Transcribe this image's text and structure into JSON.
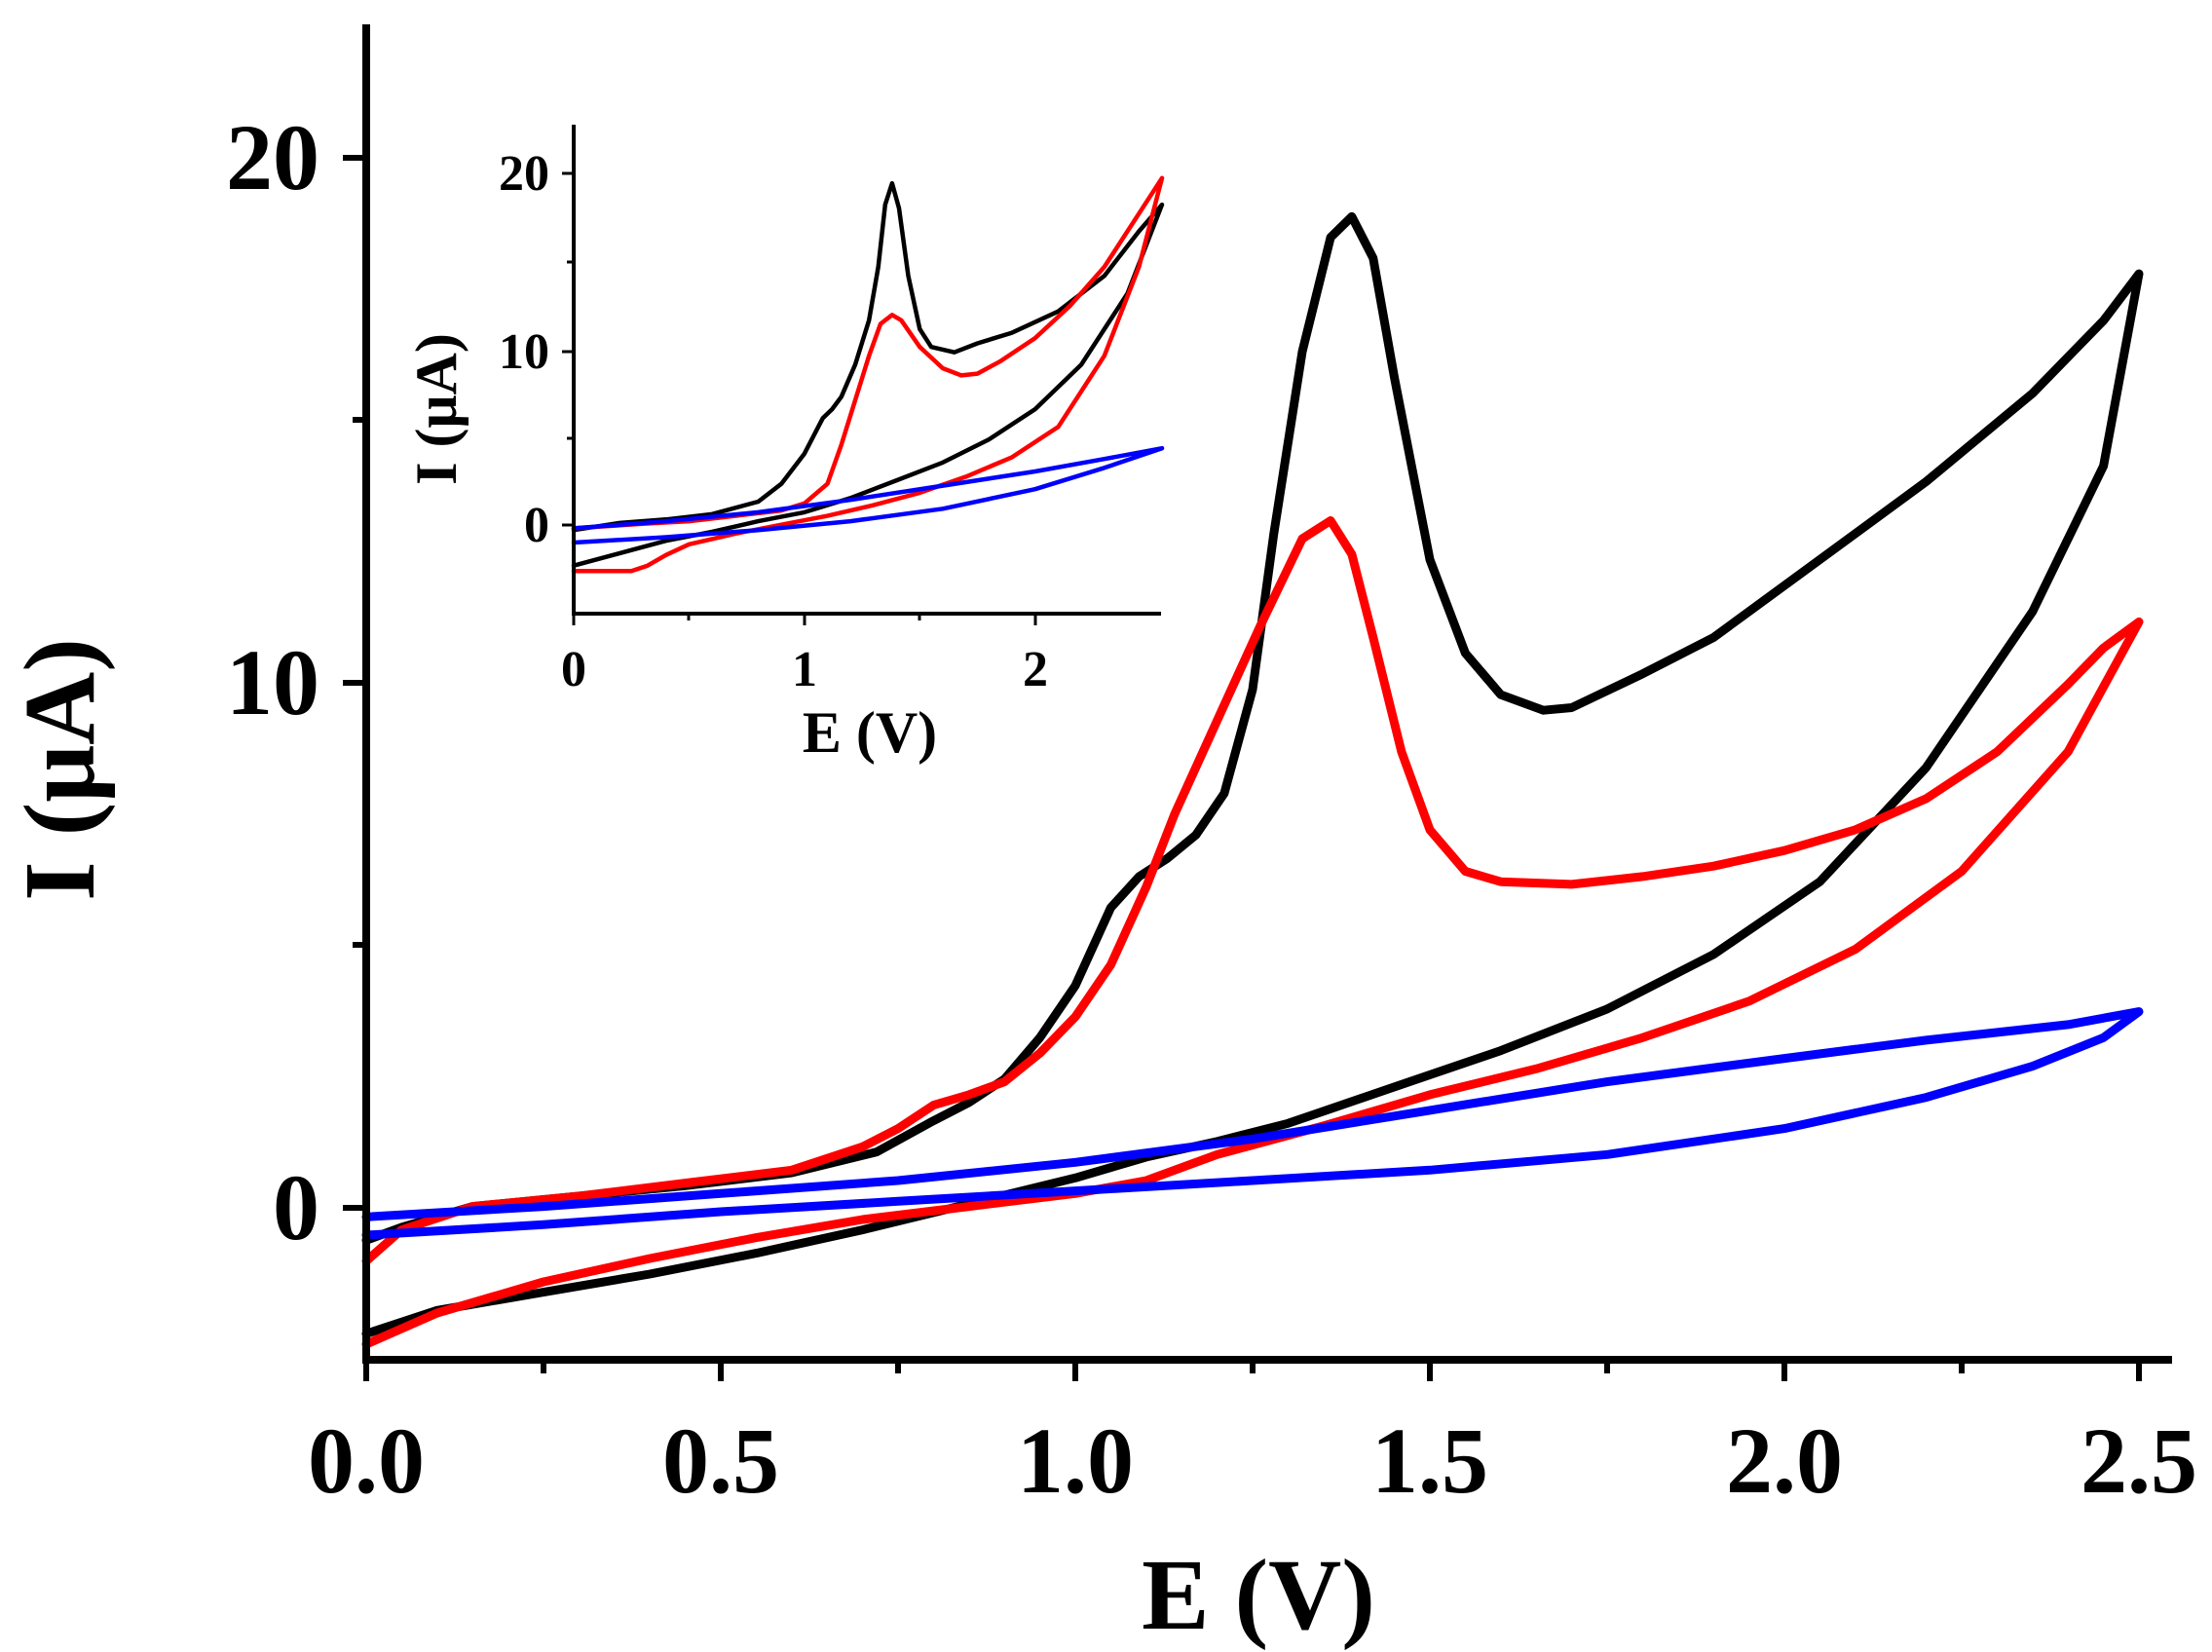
{
  "chart_data": [
    {
      "id": "main",
      "type": "line",
      "title": "",
      "xlabel": "E (V)",
      "ylabel": "I (μA)",
      "xlim": [
        0,
        2.5
      ],
      "ylim": [
        -2.9,
        22.8
      ],
      "xticks": [
        0,
        0.5,
        1.0,
        1.5,
        2.0,
        2.5
      ],
      "xtick_labels": [
        "0.0",
        "0.5",
        "1.0",
        "1.5",
        "2.0",
        "2.5"
      ],
      "yticks": [
        0,
        10,
        20
      ],
      "ytick_labels": [
        "0",
        "10",
        "20"
      ],
      "series": [
        {
          "name": "black",
          "color": "#000000",
          "points": [
            [
              0,
              -2.4
            ],
            [
              0.1,
              -1.95
            ],
            [
              0.25,
              -1.6
            ],
            [
              0.4,
              -1.25
            ],
            [
              0.55,
              -0.85
            ],
            [
              0.7,
              -0.4
            ],
            [
              0.85,
              0.1
            ],
            [
              1.0,
              0.6
            ],
            [
              1.1,
              1.0
            ],
            [
              1.2,
              1.3
            ],
            [
              1.3,
              1.65
            ],
            [
              1.45,
              2.35
            ],
            [
              1.6,
              3.05
            ],
            [
              1.75,
              3.85
            ],
            [
              1.9,
              4.9
            ],
            [
              2.05,
              6.3
            ],
            [
              2.2,
              8.5
            ],
            [
              2.35,
              11.5
            ],
            [
              2.45,
              14.3
            ],
            [
              2.5,
              18.0
            ],
            [
              2.45,
              17.1
            ],
            [
              2.35,
              15.7
            ],
            [
              2.2,
              14.0
            ],
            [
              2.05,
              12.5
            ],
            [
              1.9,
              11.0
            ],
            [
              1.8,
              10.3
            ],
            [
              1.7,
              9.65
            ],
            [
              1.66,
              9.6
            ],
            [
              1.6,
              9.9
            ],
            [
              1.55,
              10.7
            ],
            [
              1.5,
              12.5
            ],
            [
              1.45,
              16.0
            ],
            [
              1.42,
              18.3
            ],
            [
              1.39,
              19.1
            ],
            [
              1.36,
              18.7
            ],
            [
              1.32,
              16.5
            ],
            [
              1.28,
              13.0
            ],
            [
              1.25,
              10.0
            ],
            [
              1.21,
              8.0
            ],
            [
              1.17,
              7.2
            ],
            [
              1.13,
              6.75
            ],
            [
              1.09,
              6.4
            ],
            [
              1.05,
              5.8
            ],
            [
              1.0,
              4.3
            ],
            [
              0.95,
              3.3
            ],
            [
              0.9,
              2.5
            ],
            [
              0.85,
              2.05
            ],
            [
              0.8,
              1.7
            ],
            [
              0.72,
              1.1
            ],
            [
              0.6,
              0.7
            ],
            [
              0.45,
              0.45
            ],
            [
              0.3,
              0.25
            ],
            [
              0.15,
              0.05
            ],
            [
              0.05,
              -0.35
            ],
            [
              0,
              -0.6
            ]
          ]
        },
        {
          "name": "red",
          "color": "#ff0000",
          "points": [
            [
              0,
              -2.6
            ],
            [
              0.1,
              -2.0
            ],
            [
              0.25,
              -1.4
            ],
            [
              0.4,
              -0.95
            ],
            [
              0.55,
              -0.55
            ],
            [
              0.7,
              -0.2
            ],
            [
              0.85,
              0.05
            ],
            [
              1.0,
              0.3
            ],
            [
              1.1,
              0.55
            ],
            [
              1.2,
              1.05
            ],
            [
              1.35,
              1.6
            ],
            [
              1.5,
              2.2
            ],
            [
              1.65,
              2.7
            ],
            [
              1.8,
              3.3
            ],
            [
              1.95,
              4.0
            ],
            [
              2.1,
              5.0
            ],
            [
              2.25,
              6.5
            ],
            [
              2.4,
              8.8
            ],
            [
              2.5,
              11.3
            ],
            [
              2.45,
              10.8
            ],
            [
              2.4,
              10.1
            ],
            [
              2.3,
              8.8
            ],
            [
              2.2,
              7.9
            ],
            [
              2.1,
              7.3
            ],
            [
              2.0,
              6.9
            ],
            [
              1.9,
              6.6
            ],
            [
              1.8,
              6.4
            ],
            [
              1.7,
              6.25
            ],
            [
              1.6,
              6.3
            ],
            [
              1.55,
              6.5
            ],
            [
              1.5,
              7.3
            ],
            [
              1.46,
              8.8
            ],
            [
              1.42,
              11.0
            ],
            [
              1.39,
              12.6
            ],
            [
              1.36,
              13.25
            ],
            [
              1.32,
              12.9
            ],
            [
              1.26,
              11.2
            ],
            [
              1.2,
              9.4
            ],
            [
              1.14,
              7.6
            ],
            [
              1.1,
              6.2
            ],
            [
              1.05,
              4.7
            ],
            [
              1.0,
              3.7
            ],
            [
              0.95,
              3.0
            ],
            [
              0.9,
              2.45
            ],
            [
              0.85,
              2.2
            ],
            [
              0.8,
              2.0
            ],
            [
              0.75,
              1.55
            ],
            [
              0.7,
              1.2
            ],
            [
              0.6,
              0.75
            ],
            [
              0.45,
              0.5
            ],
            [
              0.3,
              0.25
            ],
            [
              0.15,
              0.05
            ],
            [
              0.05,
              -0.4
            ],
            [
              0,
              -1.0
            ]
          ]
        },
        {
          "name": "blue",
          "color": "#0000ff",
          "points": [
            [
              0,
              -0.5
            ],
            [
              0.25,
              -0.3
            ],
            [
              0.5,
              -0.05
            ],
            [
              0.75,
              0.15
            ],
            [
              1.0,
              0.35
            ],
            [
              1.25,
              0.55
            ],
            [
              1.5,
              0.75
            ],
            [
              1.75,
              1.05
            ],
            [
              2.0,
              1.55
            ],
            [
              2.2,
              2.15
            ],
            [
              2.35,
              2.75
            ],
            [
              2.45,
              3.3
            ],
            [
              2.5,
              3.8
            ],
            [
              2.4,
              3.55
            ],
            [
              2.2,
              3.25
            ],
            [
              2.0,
              2.9
            ],
            [
              1.75,
              2.45
            ],
            [
              1.5,
              1.9
            ],
            [
              1.25,
              1.35
            ],
            [
              1.0,
              0.9
            ],
            [
              0.75,
              0.55
            ],
            [
              0.5,
              0.3
            ],
            [
              0.25,
              0.05
            ],
            [
              0,
              -0.15
            ]
          ]
        }
      ]
    },
    {
      "id": "inset",
      "type": "line",
      "title": "",
      "xlabel": "E (V)",
      "ylabel": "I (μA)",
      "xlim": [
        0,
        2.55
      ],
      "ylim": [
        -5.0,
        22.5
      ],
      "xticks": [
        0,
        1,
        2
      ],
      "xtick_labels": [
        "0",
        "1",
        "2"
      ],
      "yticks": [
        0,
        10,
        20
      ],
      "ytick_labels": [
        "0",
        "10",
        "20"
      ],
      "series": [
        {
          "name": "black",
          "color": "#000000",
          "points": [
            [
              0,
              -2.3
            ],
            [
              0.2,
              -1.6
            ],
            [
              0.4,
              -0.9
            ],
            [
              0.6,
              -0.4
            ],
            [
              0.8,
              0.2
            ],
            [
              1.0,
              0.7
            ],
            [
              1.2,
              1.5
            ],
            [
              1.4,
              2.5
            ],
            [
              1.6,
              3.5
            ],
            [
              1.8,
              4.8
            ],
            [
              2.0,
              6.5
            ],
            [
              2.2,
              9.0
            ],
            [
              2.4,
              13.0
            ],
            [
              2.55,
              18.0
            ],
            [
              2.45,
              16.5
            ],
            [
              2.3,
              14.0
            ],
            [
              2.1,
              12.0
            ],
            [
              1.9,
              10.8
            ],
            [
              1.75,
              10.2
            ],
            [
              1.65,
              9.7
            ],
            [
              1.55,
              10.0
            ],
            [
              1.5,
              11.0
            ],
            [
              1.45,
              14.0
            ],
            [
              1.41,
              17.8
            ],
            [
              1.38,
              19.2
            ],
            [
              1.35,
              18.0
            ],
            [
              1.32,
              14.5
            ],
            [
              1.28,
              11.5
            ],
            [
              1.22,
              9.0
            ],
            [
              1.16,
              7.2
            ],
            [
              1.12,
              6.5
            ],
            [
              1.08,
              6.0
            ],
            [
              1.04,
              5.0
            ],
            [
              1.0,
              4.0
            ],
            [
              0.9,
              2.3
            ],
            [
              0.8,
              1.3
            ],
            [
              0.6,
              0.6
            ],
            [
              0.4,
              0.3
            ],
            [
              0.2,
              0.1
            ],
            [
              0,
              -0.3
            ]
          ]
        },
        {
          "name": "red",
          "color": "#ff0000",
          "points": [
            [
              0,
              -2.6
            ],
            [
              0.15,
              -2.6
            ],
            [
              0.25,
              -2.6
            ],
            [
              0.32,
              -2.3
            ],
            [
              0.4,
              -1.7
            ],
            [
              0.5,
              -1.1
            ],
            [
              0.7,
              -0.5
            ],
            [
              0.9,
              0.0
            ],
            [
              1.1,
              0.5
            ],
            [
              1.3,
              1.1
            ],
            [
              1.5,
              1.8
            ],
            [
              1.7,
              2.7
            ],
            [
              1.9,
              3.8
            ],
            [
              2.1,
              5.5
            ],
            [
              2.3,
              9.5
            ],
            [
              2.45,
              14.5
            ],
            [
              2.55,
              19.5
            ],
            [
              2.45,
              17.5
            ],
            [
              2.3,
              14.5
            ],
            [
              2.15,
              12.3
            ],
            [
              2.0,
              10.5
            ],
            [
              1.85,
              9.2
            ],
            [
              1.75,
              8.5
            ],
            [
              1.68,
              8.4
            ],
            [
              1.6,
              8.8
            ],
            [
              1.5,
              10.0
            ],
            [
              1.42,
              11.5
            ],
            [
              1.38,
              11.8
            ],
            [
              1.33,
              11.3
            ],
            [
              1.28,
              9.5
            ],
            [
              1.22,
              7.0
            ],
            [
              1.16,
              4.5
            ],
            [
              1.1,
              2.3
            ],
            [
              1.0,
              1.2
            ],
            [
              0.9,
              0.8
            ],
            [
              0.7,
              0.5
            ],
            [
              0.5,
              0.2
            ],
            [
              0.3,
              0.05
            ],
            [
              0,
              -0.2
            ]
          ]
        },
        {
          "name": "blue",
          "color": "#0000ff",
          "points": [
            [
              0,
              -1.0
            ],
            [
              0.4,
              -0.7
            ],
            [
              0.8,
              -0.3
            ],
            [
              1.2,
              0.2
            ],
            [
              1.6,
              0.9
            ],
            [
              2.0,
              2.0
            ],
            [
              2.3,
              3.2
            ],
            [
              2.55,
              4.3
            ],
            [
              2.3,
              3.7
            ],
            [
              2.0,
              3.0
            ],
            [
              1.6,
              2.2
            ],
            [
              1.2,
              1.4
            ],
            [
              0.8,
              0.7
            ],
            [
              0.4,
              0.2
            ],
            [
              0,
              -0.2
            ]
          ]
        }
      ]
    }
  ]
}
